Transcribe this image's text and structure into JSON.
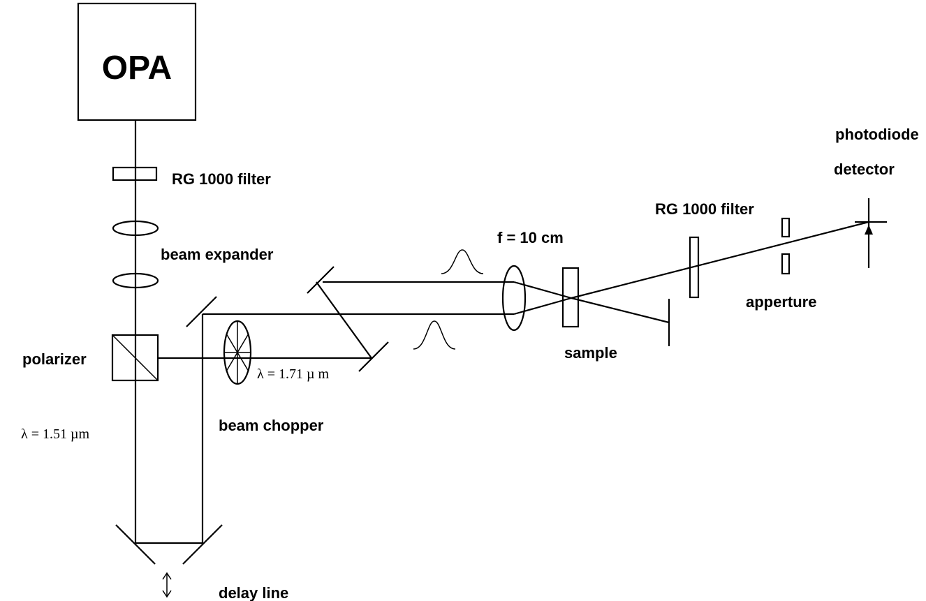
{
  "diagram": {
    "labels": {
      "opa": "OPA",
      "filter1": "RG 1000 filter",
      "beam_expander": "beam expander",
      "polarizer": "polarizer",
      "lambda1": "λ = 1.51 µm",
      "beam_chopper": "beam chopper",
      "lambda2": "λ = 1.71 µ m",
      "delay_line": "delay line",
      "lens": "f = 10 cm",
      "sample": "sample",
      "filter2": "RG 1000 filter",
      "aperture": "apperture",
      "photodiode": "photodiode",
      "detector": "detector"
    }
  }
}
